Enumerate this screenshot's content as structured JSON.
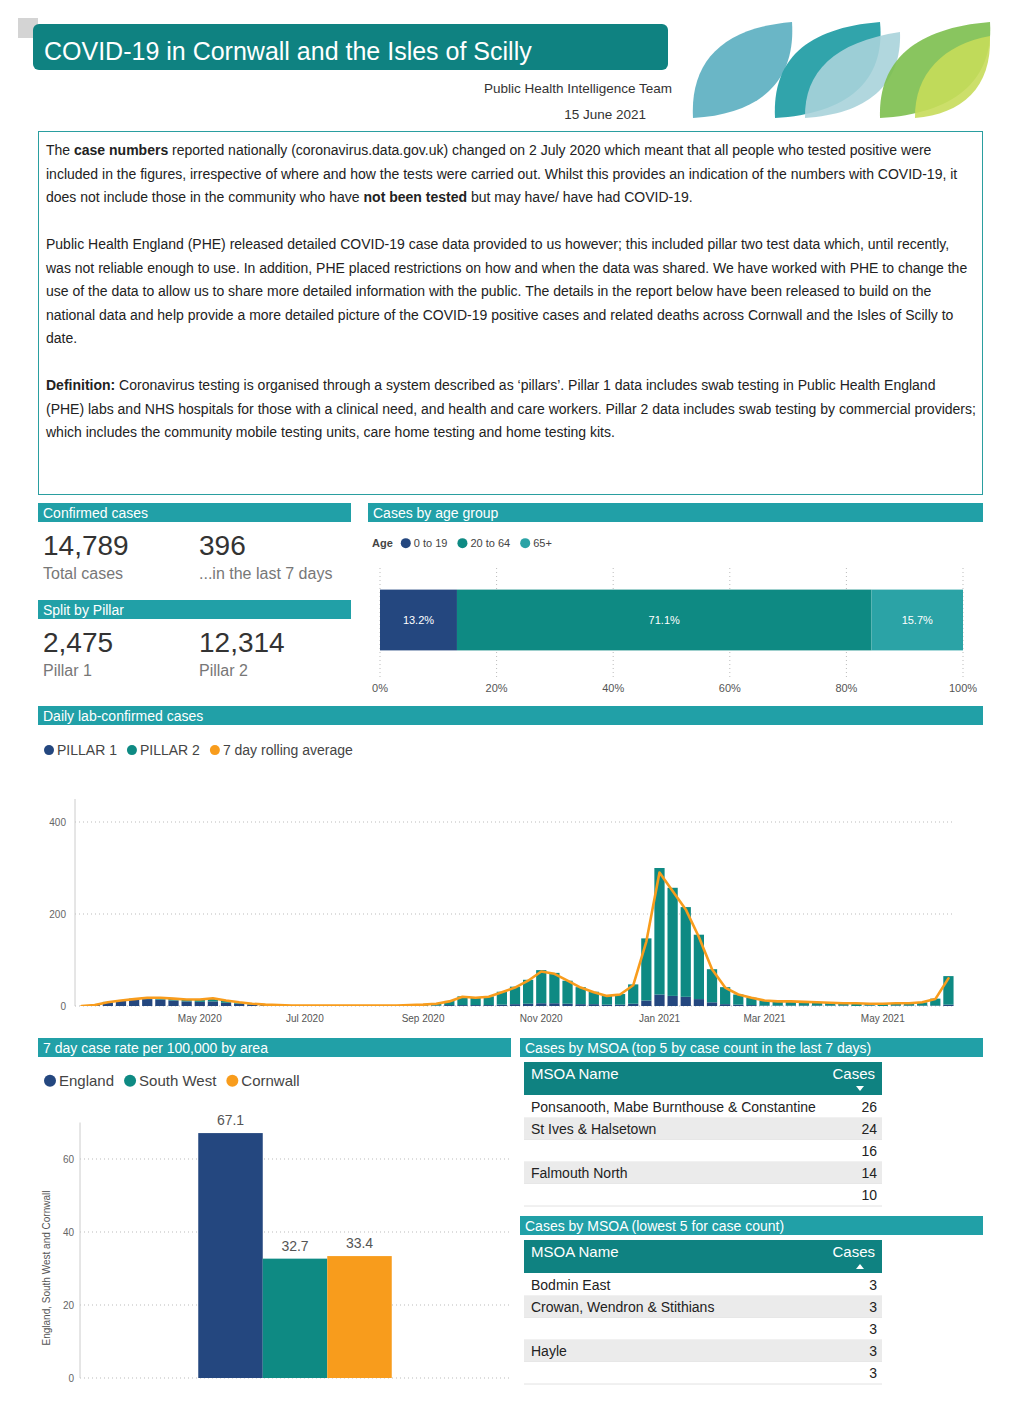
{
  "header": {
    "title": "COVID-19 in Cornwall and the Isles of Scilly",
    "organisation": "Public Health Intelligence Team",
    "date": "15 June 2021"
  },
  "notes": [
    [
      {
        "text": "The "
      },
      {
        "text": "case numbers",
        "bold": true
      },
      {
        "text": " reported nationally (coronavirus.data.gov.uk) changed on 2 July 2020 which meant that all people who tested positive were included in the figures, irrespective of where and how the tests were carried out. Whilst this provides an indication of the numbers with COVID-19, it does not include those in the community who have "
      },
      {
        "text": "not been tested",
        "bold": true
      },
      {
        "text": " but may have/ have had COVID-19."
      }
    ],
    [
      {
        "text": "Public Health England (PHE) released detailed COVID-19 case data provided to us however; this included pillar two test data which, until recently, was not reliable enough to use. In addition, PHE placed restrictions on how and when the data was shared. We have worked with PHE to change the use of the data to allow us to share more detailed information with the public. The details in the report below have been released to build on the national data and help provide a more detailed picture of the COVID-19 positive cases and related deaths across Cornwall and the Isles of Scilly to date."
      }
    ],
    [
      {
        "text": "Definition:",
        "bold": true
      },
      {
        "text": " Coronavirus testing is organised through a system described as ‘pillars’. Pillar 1 data includes swab testing in Public Health England (PHE) labs and NHS hospitals for those with a clinical need, and health and care workers. Pillar 2 data includes swab testing by commercial providers; which includes the community mobile testing units, care home testing and home testing kits."
      }
    ]
  ],
  "confirmed_cases": {
    "title": "Confirmed cases",
    "items": [
      {
        "value": "14,789",
        "label": "Total cases"
      },
      {
        "value": "396",
        "label": "...in the last 7 days"
      }
    ]
  },
  "split_by_pillar": {
    "title": "Split by Pillar",
    "items": [
      {
        "value": "2,475",
        "label": "Pillar 1"
      },
      {
        "value": "12,314",
        "label": "Pillar 2"
      }
    ]
  },
  "tables": [
    {
      "title": "Cases by MSOA (top 5 by case count in the last 7 days)",
      "columns": [
        "MSOA Name",
        "Cases"
      ],
      "sort": "descending",
      "rows": [
        [
          "Ponsanooth, Mabe Burnthouse & Constantine",
          26
        ],
        [
          "St Ives & Halsetown",
          24
        ],
        [
          null,
          16
        ],
        [
          "Falmouth North",
          14
        ],
        [
          null,
          10
        ]
      ]
    },
    {
      "title": "Cases by MSOA (lowest 5 for case count)",
      "columns": [
        "MSOA Name",
        "Cases"
      ],
      "sort": "ascending",
      "rows": [
        [
          "Bodmin East",
          3
        ],
        [
          "Crowan, Wendron & Stithians",
          3
        ],
        [
          null,
          3
        ],
        [
          "Hayle",
          3
        ],
        [
          null,
          3
        ]
      ]
    }
  ],
  "chart_data": [
    {
      "type": "bar",
      "title": "Cases by age group",
      "orientation": "horizontal",
      "stacked": true,
      "legend_title": "Age",
      "categories": [
        null
      ],
      "series": [
        {
          "name": "0 to 19",
          "color": "#24477f",
          "values": [
            13.2
          ],
          "value_labels": [
            "13.2%"
          ]
        },
        {
          "name": "20 to 64",
          "color": "#0e8a83",
          "values": [
            71.1
          ],
          "value_labels": [
            "71.1%"
          ]
        },
        {
          "name": "65+",
          "color": "#2ba3a6",
          "values": [
            15.7
          ],
          "value_labels": [
            "15.7%"
          ]
        }
      ],
      "xlim": [
        0,
        100
      ],
      "xticks": [
        {
          "value": 0,
          "label": "0%"
        },
        {
          "value": 20,
          "label": "20%"
        },
        {
          "value": 40,
          "label": "40%"
        },
        {
          "value": 60,
          "label": "60%"
        },
        {
          "value": 80,
          "label": "80%"
        },
        {
          "value": 100,
          "label": "100%"
        }
      ],
      "grid": true,
      "data_labels": true
    },
    {
      "type": "bar",
      "title": "Daily lab-confirmed cases",
      "stacked": true,
      "categories": [
        null,
        null,
        null,
        null,
        null,
        null,
        null,
        null,
        null,
        "May 2020",
        null,
        null,
        null,
        null,
        null,
        null,
        null,
        "Jul 2020",
        null,
        null,
        null,
        null,
        null,
        null,
        null,
        null,
        "Sep 2020",
        null,
        null,
        null,
        null,
        null,
        null,
        null,
        null,
        "Nov 2020",
        null,
        null,
        null,
        null,
        null,
        null,
        null,
        null,
        "Jan 2021",
        null,
        null,
        null,
        null,
        null,
        null,
        null,
        "Mar 2021",
        null,
        null,
        null,
        null,
        null,
        null,
        null,
        null,
        "May 2021",
        null,
        null,
        null,
        null,
        null
      ],
      "series": [
        {
          "name": "PILLAR 1",
          "color": "#24477f",
          "values": [
            0,
            2,
            8,
            11,
            13,
            15,
            14,
            12,
            10,
            9,
            10,
            7,
            5,
            3,
            2,
            1,
            1,
            1,
            1,
            0,
            1,
            0,
            1,
            0,
            1,
            1,
            1,
            1,
            2,
            2,
            2,
            2,
            3,
            4,
            5,
            6,
            6,
            5,
            4,
            4,
            3,
            3,
            5,
            12,
            25,
            22,
            20,
            15,
            8,
            4,
            3,
            2,
            1,
            1,
            1,
            1,
            1,
            1,
            1,
            0,
            1,
            0,
            1,
            1,
            1,
            1,
            3
          ]
        },
        {
          "name": "PILLAR 2",
          "color": "#0e8a83",
          "values": [
            0,
            0,
            1,
            2,
            3,
            4,
            5,
            4,
            5,
            6,
            6,
            4,
            3,
            2,
            1,
            1,
            0,
            0,
            0,
            1,
            0,
            1,
            0,
            1,
            0,
            1,
            2,
            4,
            9,
            19,
            17,
            19,
            28,
            38,
            52,
            72,
            66,
            50,
            37,
            27,
            20,
            23,
            42,
            135,
            275,
            235,
            195,
            140,
            72,
            37,
            22,
            16,
            11,
            9,
            9,
            8,
            7,
            6,
            5,
            6,
            4,
            5,
            5,
            5,
            7,
            15,
            62
          ]
        },
        {
          "name": "7 day rolling average",
          "type": "line",
          "color": "#f89c1c",
          "values": [
            0,
            2,
            8,
            12,
            15,
            18,
            18,
            16,
            14,
            14,
            17,
            12,
            8,
            5,
            3,
            2,
            1,
            1,
            1,
            1,
            1,
            1,
            1,
            1,
            1,
            2,
            3,
            5,
            10,
            20,
            18,
            20,
            30,
            40,
            55,
            75,
            70,
            55,
            40,
            30,
            22,
            25,
            45,
            140,
            290,
            250,
            210,
            150,
            80,
            40,
            25,
            18,
            12,
            10,
            10,
            9,
            8,
            7,
            6,
            6,
            5,
            5,
            6,
            6,
            8,
            15,
            60
          ]
        }
      ],
      "ylim": [
        0,
        450
      ],
      "yticks": [
        0,
        200,
        400
      ],
      "grid": true
    },
    {
      "type": "bar",
      "title": "7 day case rate per 100,000 by area",
      "y_label": "England, South West and Cornwall",
      "categories": [
        null
      ],
      "series": [
        {
          "name": "England",
          "color": "#24477f",
          "values": [
            67.1
          ]
        },
        {
          "name": "South West",
          "color": "#0e8a83",
          "values": [
            32.7
          ]
        },
        {
          "name": "Cornwall",
          "color": "#f89c1c",
          "values": [
            33.4
          ]
        }
      ],
      "ylim": [
        0,
        70
      ],
      "yticks": [
        0,
        20,
        40,
        60
      ],
      "grid": true,
      "data_labels": true
    }
  ]
}
